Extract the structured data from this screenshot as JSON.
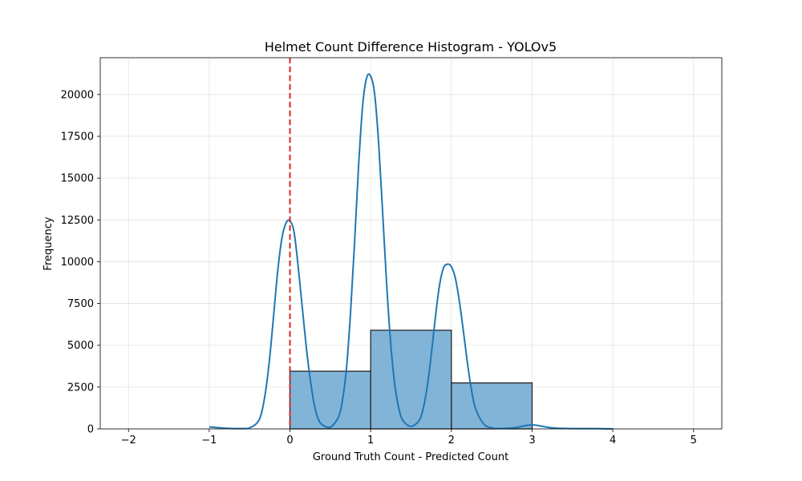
{
  "chart_data": {
    "type": "bar",
    "title": "Helmet Count Difference Histogram - YOLOv5",
    "xlabel": "Ground Truth Count - Predicted Count",
    "ylabel": "Frequency",
    "xlim": [
      -2.35,
      5.35
    ],
    "ylim": [
      0,
      22200
    ],
    "x_ticks": [
      -2,
      -1,
      0,
      1,
      2,
      3,
      4,
      5
    ],
    "x_tick_labels": [
      "−2",
      "−1",
      "0",
      "1",
      "2",
      "3",
      "4",
      "5"
    ],
    "y_ticks": [
      0,
      2500,
      5000,
      7500,
      10000,
      12500,
      15000,
      17500,
      20000
    ],
    "y_tick_labels": [
      "0",
      "2500",
      "5000",
      "7500",
      "10000",
      "12500",
      "15000",
      "17500",
      "20000"
    ],
    "grid": true,
    "bars": [
      {
        "x0": 0,
        "x1": 1,
        "value": 3450
      },
      {
        "x0": 1,
        "x1": 2,
        "value": 5900
      },
      {
        "x0": 2,
        "x1": 3,
        "value": 2750
      }
    ],
    "kde_curve": {
      "x": [
        -1.0,
        -0.9,
        -0.8,
        -0.7,
        -0.6,
        -0.5,
        -0.4,
        -0.35,
        -0.3,
        -0.25,
        -0.2,
        -0.15,
        -0.1,
        -0.05,
        0.0,
        0.05,
        0.1,
        0.15,
        0.2,
        0.25,
        0.3,
        0.35,
        0.4,
        0.5,
        0.6,
        0.65,
        0.7,
        0.75,
        0.8,
        0.85,
        0.9,
        0.95,
        1.0,
        1.05,
        1.1,
        1.15,
        1.2,
        1.25,
        1.3,
        1.35,
        1.4,
        1.5,
        1.6,
        1.65,
        1.7,
        1.75,
        1.8,
        1.85,
        1.9,
        1.95,
        2.0,
        2.05,
        2.1,
        2.15,
        2.2,
        2.25,
        2.3,
        2.4,
        2.5,
        2.6,
        2.7,
        2.8,
        2.9,
        3.0,
        3.1,
        3.2,
        3.3,
        3.5,
        3.8,
        4.0
      ],
      "y": [
        120,
        80,
        40,
        20,
        20,
        60,
        400,
        1000,
        2300,
        4300,
        6900,
        9500,
        11400,
        12300,
        12450,
        11800,
        9800,
        7400,
        5000,
        3000,
        1500,
        600,
        250,
        100,
        700,
        1700,
        3600,
        6900,
        11100,
        15700,
        19300,
        21000,
        21100,
        20000,
        17000,
        12800,
        8500,
        5000,
        2600,
        1200,
        500,
        150,
        500,
        1200,
        2500,
        4400,
        6600,
        8500,
        9600,
        9850,
        9700,
        9000,
        7600,
        5800,
        3900,
        2300,
        1200,
        300,
        60,
        20,
        40,
        80,
        180,
        240,
        180,
        90,
        40,
        20,
        20,
        0
      ]
    },
    "vline": {
      "x": 0,
      "color": "#d62728",
      "style": "dashed"
    },
    "colors": {
      "bar_fill": "#82b4d8",
      "bar_edge": "#1a1a1a",
      "kde_line": "#1f77b4"
    }
  }
}
